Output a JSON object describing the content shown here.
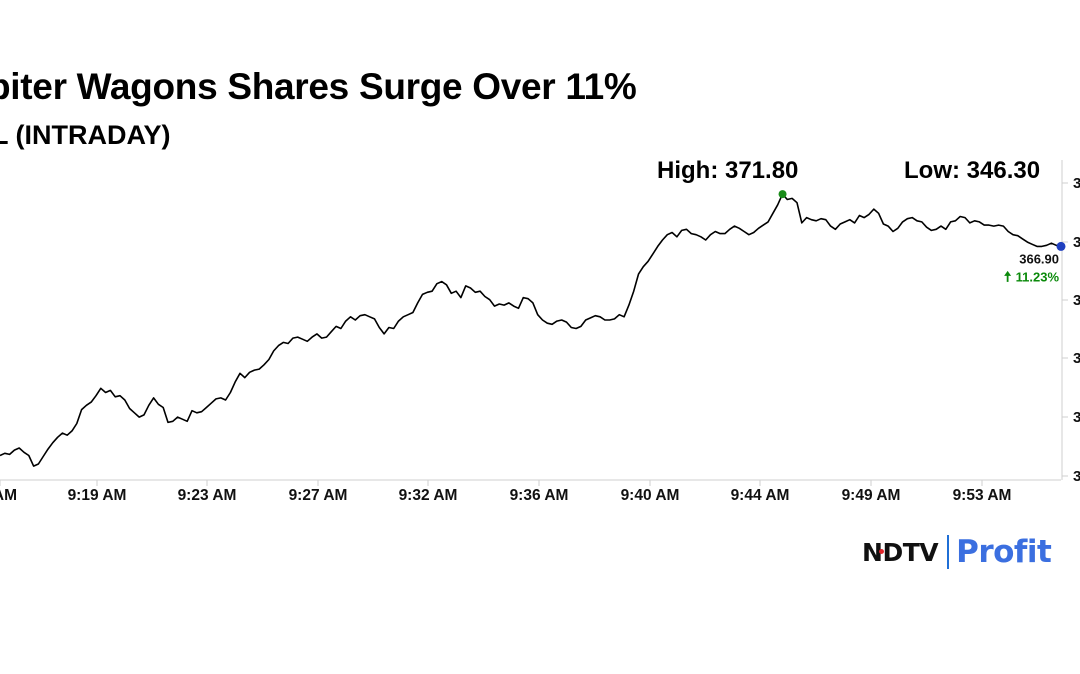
{
  "header": {
    "title": "piter Wagons Shares Surge Over 11%",
    "subtitle": "L (INTRADAY)"
  },
  "stats": {
    "high_label": "High: 371.80",
    "low_label": "Low: 346.30"
  },
  "colors": {
    "line": "#000000",
    "high_marker": "#1a8c1a",
    "last_marker": "#1f3fbf",
    "change_text": "#0b8a0b",
    "axis": "#cfcfcf",
    "logo_blue": "#3b6fe0",
    "logo_red": "#e0262b"
  },
  "chart_data": {
    "type": "line",
    "title": "piter Wagons Shares Surge Over 11%",
    "subtitle": "L (INTRADAY)",
    "xlabel": "",
    "ylabel": "",
    "x_tick_labels": [
      "AM",
      "9:19 AM",
      "9:23 AM",
      "9:27 AM",
      "9:32 AM",
      "9:36 AM",
      "9:40 AM",
      "9:44 AM",
      "9:49 AM",
      "9:53 AM"
    ],
    "y_tick_labels_visible": [
      "3",
      "3",
      "3",
      "3",
      "3",
      "3"
    ],
    "ylim": [
      345,
      375
    ],
    "grid": false,
    "legend": "none",
    "series": [
      {
        "values": [
          347.3,
          347.5,
          347.4,
          347.8,
          348.0,
          347.6,
          347.3,
          346.3,
          346.5,
          347.2,
          347.9,
          348.5,
          349.0,
          349.4,
          349.2,
          349.6,
          350.3,
          351.6,
          352.0,
          352.3,
          352.9,
          353.6,
          353.2,
          353.4,
          352.8,
          352.9,
          352.5,
          351.7,
          351.3,
          350.9,
          351.1,
          352.0,
          352.7,
          352.1,
          351.8,
          350.4,
          350.5,
          350.9,
          350.7,
          350.5,
          351.5,
          351.3,
          351.4,
          351.8,
          352.2,
          352.6,
          352.7,
          352.5,
          353.2,
          354.2,
          355.0,
          354.6,
          355.1,
          355.3,
          355.4,
          355.8,
          356.3,
          357.1,
          357.6,
          357.9,
          357.8,
          358.3,
          358.4,
          358.2,
          358.0,
          358.4,
          358.7,
          358.3,
          358.4,
          358.9,
          359.4,
          359.2,
          359.9,
          360.3,
          360.0,
          360.4,
          360.5,
          360.3,
          360.1,
          359.3,
          358.7,
          359.3,
          359.2,
          359.9,
          360.3,
          360.5,
          360.7,
          361.6,
          362.4,
          362.6,
          362.7,
          363.4,
          363.6,
          363.3,
          362.5,
          362.7,
          362.1,
          363.2,
          363.0,
          362.6,
          362.7,
          362.2,
          361.9,
          361.3,
          361.5,
          361.4,
          361.6,
          361.3,
          361.1,
          362.1,
          362.0,
          361.6,
          360.5,
          360.0,
          359.7,
          359.6,
          359.9,
          360.0,
          359.8,
          359.3,
          359.2,
          359.4,
          360.0,
          360.2,
          360.4,
          360.3,
          360.0,
          360.0,
          360.1,
          360.5,
          360.3,
          361.4,
          362.7,
          364.3,
          365.0,
          365.5,
          366.2,
          366.9,
          367.5,
          368.0,
          368.2,
          367.8,
          368.4,
          368.5,
          368.1,
          368.0,
          367.8,
          367.5,
          368.0,
          368.3,
          368.1,
          368.1,
          368.5,
          368.8,
          368.6,
          368.3,
          368.0,
          368.2,
          368.6,
          368.9,
          369.2,
          370.0,
          370.8,
          371.8,
          371.3,
          371.4,
          371.0,
          369.1,
          369.6,
          369.4,
          369.3,
          369.5,
          369.4,
          368.8,
          368.5,
          369.0,
          369.2,
          369.4,
          369.1,
          369.8,
          369.6,
          369.9,
          370.4,
          370.0,
          369.0,
          368.8,
          368.3,
          368.6,
          369.2,
          369.5,
          369.6,
          369.3,
          369.2,
          368.7,
          368.4,
          368.5,
          368.8,
          368.5,
          369.2,
          369.3,
          369.7,
          369.6,
          369.1,
          369.3,
          369.2,
          368.9,
          368.9,
          368.8,
          368.9,
          368.8,
          368.3,
          368.0,
          367.9,
          367.6,
          367.3,
          367.1,
          366.9,
          366.9,
          367.0,
          367.2,
          367.0,
          366.9
        ]
      }
    ],
    "high": 371.8,
    "low": 346.3,
    "last": 366.9,
    "last_label": "366.90",
    "change_label": "11.23%",
    "change_direction": "up"
  }
}
